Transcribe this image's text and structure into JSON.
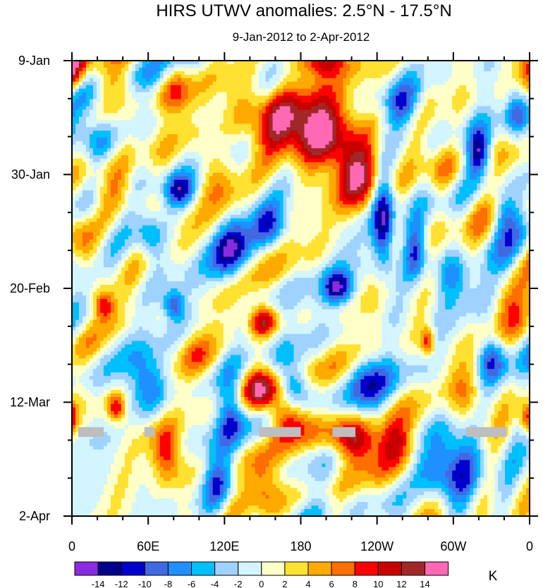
{
  "chart_data": {
    "type": "heatmap",
    "title": "HIRS UTWV anomalies: 2.5°N - 17.5°N",
    "subtitle": "9-Jan-2012 to 2-Apr-2012",
    "x_ticks": [
      "0",
      "60E",
      "120E",
      "180",
      "120W",
      "60W",
      "0"
    ],
    "x_tick_values": [
      0,
      60,
      120,
      180,
      240,
      300,
      360
    ],
    "x_range": [
      0,
      360
    ],
    "y_ticks": [
      "9-Jan",
      "30-Jan",
      "20-Feb",
      "12-Mar",
      "2-Apr"
    ],
    "y_tick_days": [
      0,
      21,
      42,
      63,
      84
    ],
    "y_range": [
      0,
      84
    ],
    "colorbar": {
      "unit": "K",
      "tick_labels": [
        "-14",
        "-12",
        "-10",
        "-8",
        "-6",
        "-4",
        "-2",
        "0",
        "2",
        "4",
        "6",
        "8",
        "10",
        "12",
        "14"
      ],
      "levels": [
        -14,
        -12,
        -10,
        -8,
        -6,
        -4,
        -2,
        0,
        2,
        4,
        6,
        8,
        10,
        12,
        14
      ],
      "colors": [
        "#8a2be2",
        "#00008b",
        "#0000cd",
        "#4169e1",
        "#1e90ff",
        "#00bfff",
        "#a0d2ff",
        "#d2f5ff",
        "#ffffc8",
        "#ffe132",
        "#ffaa00",
        "#ff6e00",
        "#ff0000",
        "#c80000",
        "#a02828",
        "#ff69b4"
      ]
    },
    "missing_data_color": "#bebebe",
    "missing_data_segments": [
      {
        "lon_start": 5,
        "lon_end": 25,
        "day": 68.5
      },
      {
        "lon_start": 57,
        "lon_end": 65,
        "day": 68.5
      },
      {
        "lon_start": 147,
        "lon_end": 180,
        "day": 68.5
      },
      {
        "lon_start": 205,
        "lon_end": 223,
        "day": 68.5
      },
      {
        "lon_start": 310,
        "lon_end": 342,
        "day": 68.5
      }
    ],
    "anomaly_features": [
      {
        "lon": 193,
        "day": 13,
        "value": 16,
        "sx": 20,
        "sy": 5
      },
      {
        "lon": 225,
        "day": 21,
        "value": 12,
        "sx": 12,
        "sy": 5
      },
      {
        "lon": 150,
        "day": 10,
        "value": 9,
        "sx": 18,
        "sy": 4
      },
      {
        "lon": 195,
        "day": 0,
        "value": 11,
        "sx": 16,
        "sy": 2
      },
      {
        "lon": 150,
        "day": 48,
        "value": 12,
        "sx": 8,
        "sy": 2
      },
      {
        "lon": 150,
        "day": 61,
        "value": 13,
        "sx": 10,
        "sy": 3
      },
      {
        "lon": 173,
        "day": 66,
        "value": 9,
        "sx": 12,
        "sy": 3
      },
      {
        "lon": 222,
        "day": 70,
        "value": 15,
        "sx": 14,
        "sy": 3
      },
      {
        "lon": 75,
        "day": 72,
        "value": 11,
        "sx": 9,
        "sy": 4
      },
      {
        "lon": 280,
        "day": 52,
        "value": 10,
        "sx": 4,
        "sy": 2
      },
      {
        "lon": 25,
        "day": 45,
        "value": 9,
        "sx": 6,
        "sy": 2
      },
      {
        "lon": 35,
        "day": 64,
        "value": 10,
        "sx": 5,
        "sy": 2
      },
      {
        "lon": 358,
        "day": 66,
        "value": 9,
        "sx": 4,
        "sy": 2
      },
      {
        "lon": 245,
        "day": 30,
        "value": -14,
        "sx": 6,
        "sy": 6
      },
      {
        "lon": 210,
        "day": 42,
        "value": -12,
        "sx": 8,
        "sy": 2
      },
      {
        "lon": 320,
        "day": 17,
        "value": -12,
        "sx": 6,
        "sy": 3
      },
      {
        "lon": 175,
        "day": 60,
        "value": -11,
        "sx": 8,
        "sy": 3
      },
      {
        "lon": 85,
        "day": 24,
        "value": -10,
        "sx": 8,
        "sy": 2
      },
      {
        "lon": 80,
        "day": 45,
        "value": -10,
        "sx": 6,
        "sy": 2
      },
      {
        "lon": 125,
        "day": 35,
        "value": -10,
        "sx": 10,
        "sy": 4
      },
      {
        "lon": 60,
        "day": 60,
        "value": -10,
        "sx": 10,
        "sy": 4
      },
      {
        "lon": 125,
        "day": 65,
        "value": -9,
        "sx": 8,
        "sy": 5
      },
      {
        "lon": 300,
        "day": 75,
        "value": -10,
        "sx": 14,
        "sy": 6
      },
      {
        "lon": 60,
        "day": 32,
        "value": -9,
        "sx": 8,
        "sy": 3
      },
      {
        "lon": 155,
        "day": 30,
        "value": -8,
        "sx": 9,
        "sy": 3
      },
      {
        "lon": 330,
        "day": 55,
        "value": -9,
        "sx": 8,
        "sy": 3
      },
      {
        "lon": 230,
        "day": 58,
        "value": -7,
        "sx": 10,
        "sy": 4
      },
      {
        "lon": 270,
        "day": 35,
        "value": -9,
        "sx": 6,
        "sy": 4
      },
      {
        "lon": 300,
        "day": 40,
        "value": -7,
        "sx": 10,
        "sy": 3
      },
      {
        "lon": 340,
        "day": 28,
        "value": -8,
        "sx": 8,
        "sy": 3
      },
      {
        "lon": 350,
        "day": 10,
        "value": -8,
        "sx": 6,
        "sy": 3
      },
      {
        "lon": 115,
        "day": 78,
        "value": -8,
        "sx": 8,
        "sy": 4
      },
      {
        "lon": 20,
        "day": 15,
        "value": -6,
        "sx": 10,
        "sy": 3
      },
      {
        "lon": 260,
        "day": 8,
        "value": -7,
        "sx": 10,
        "sy": 3
      },
      {
        "lon": 30,
        "day": 4,
        "value": 7,
        "sx": 12,
        "sy": 3
      },
      {
        "lon": 80,
        "day": 5,
        "value": 6,
        "sx": 10,
        "sy": 3
      },
      {
        "lon": 360,
        "day": 2,
        "value": 7,
        "sx": 6,
        "sy": 3
      },
      {
        "lon": 40,
        "day": 25,
        "value": 6,
        "sx": 12,
        "sy": 3
      },
      {
        "lon": 110,
        "day": 20,
        "value": 6,
        "sx": 10,
        "sy": 4
      },
      {
        "lon": 310,
        "day": 62,
        "value": 6,
        "sx": 10,
        "sy": 4
      },
      {
        "lon": 255,
        "day": 70,
        "value": 6,
        "sx": 8,
        "sy": 3
      },
      {
        "lon": 150,
        "day": 78,
        "value": 7,
        "sx": 10,
        "sy": 4
      },
      {
        "lon": 270,
        "day": 80,
        "value": 5,
        "sx": 10,
        "sy": 3
      },
      {
        "lon": 10,
        "day": 34,
        "value": 6,
        "sx": 8,
        "sy": 3
      },
      {
        "lon": 100,
        "day": 55,
        "value": 5,
        "sx": 10,
        "sy": 3
      },
      {
        "lon": 340,
        "day": 44,
        "value": 5,
        "sx": 8,
        "sy": 3
      },
      {
        "lon": 290,
        "day": 20,
        "value": 5,
        "sx": 10,
        "sy": 3
      }
    ]
  }
}
